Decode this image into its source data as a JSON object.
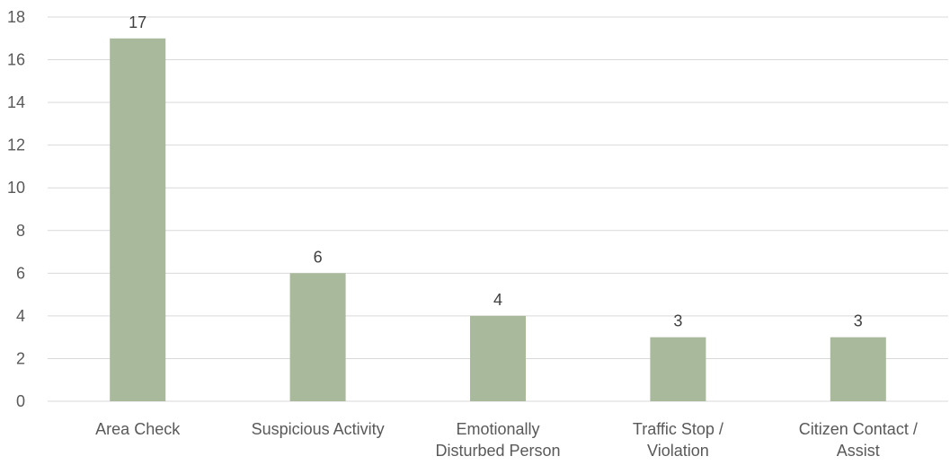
{
  "chart_data": {
    "type": "bar",
    "title": "",
    "xlabel": "",
    "ylabel": "",
    "categories": [
      [
        "Area Check"
      ],
      [
        "Suspicious Activity"
      ],
      [
        "Emotionally",
        "Disturbed Person"
      ],
      [
        "Traffic Stop /",
        "Violation"
      ],
      [
        "Citizen Contact /",
        "Assist"
      ]
    ],
    "values": [
      17,
      6,
      4,
      3,
      3
    ],
    "data_labels": [
      "17",
      "6",
      "4",
      "3",
      "3"
    ],
    "ylim": [
      0,
      18
    ],
    "yticks": [
      0,
      2,
      4,
      6,
      8,
      10,
      12,
      14,
      16,
      18
    ],
    "grid": true,
    "legend": "none"
  },
  "colors": {
    "bar": "#a9b99b",
    "gridline": "#d9d9d9",
    "axis": "#d9d9d9"
  }
}
